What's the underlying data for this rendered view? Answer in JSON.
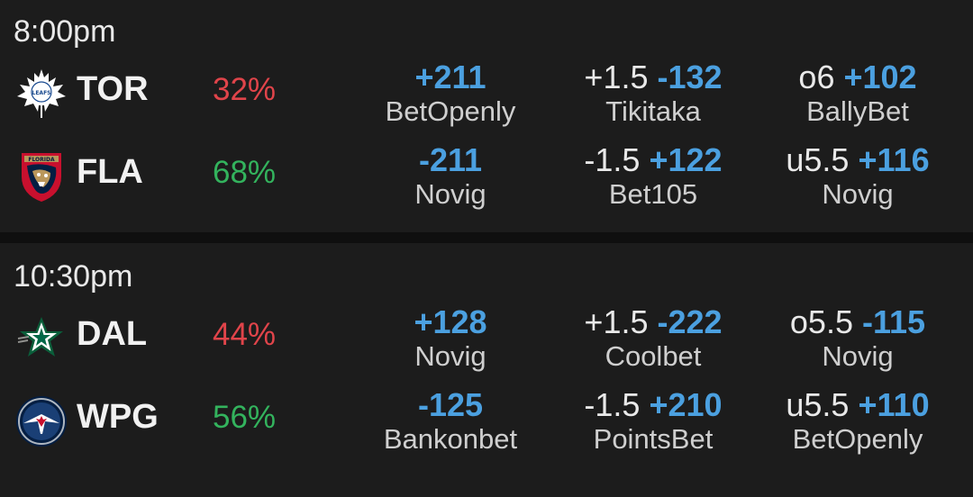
{
  "games": [
    {
      "time": "8:00pm",
      "teams": [
        {
          "abbr": "TOR",
          "logo": "maple-leafs-icon",
          "win_pct": "32%",
          "moneyline": {
            "price": "+211",
            "book": "BetOpenly"
          },
          "spread": {
            "line": "+1.5",
            "price": "-132",
            "book": "Tikitaka"
          },
          "total": {
            "line": "o6",
            "price": "+102",
            "book": "BallyBet"
          }
        },
        {
          "abbr": "FLA",
          "logo": "panthers-icon",
          "win_pct": "68%",
          "moneyline": {
            "price": "-211",
            "book": "Novig"
          },
          "spread": {
            "line": "-1.5",
            "price": "+122",
            "book": "Bet105"
          },
          "total": {
            "line": "u5.5",
            "price": "+116",
            "book": "Novig"
          }
        }
      ]
    },
    {
      "time": "10:30pm",
      "teams": [
        {
          "abbr": "DAL",
          "logo": "stars-icon",
          "win_pct": "44%",
          "moneyline": {
            "price": "+128",
            "book": "Novig"
          },
          "spread": {
            "line": "+1.5",
            "price": "-222",
            "book": "Coolbet"
          },
          "total": {
            "line": "o5.5",
            "price": "-115",
            "book": "Novig"
          }
        },
        {
          "abbr": "WPG",
          "logo": "jets-icon",
          "win_pct": "56%",
          "moneyline": {
            "price": "-125",
            "book": "Bankonbet"
          },
          "spread": {
            "line": "-1.5",
            "price": "+210",
            "book": "PointsBet"
          },
          "total": {
            "line": "u5.5",
            "price": "+110",
            "book": "BetOpenly"
          }
        }
      ]
    }
  ],
  "colors": {
    "background": "#0f0f0f",
    "panel": "#1c1c1c",
    "price_blue": "#4ba0e0",
    "pct_red": "#e0444a",
    "pct_green": "#33b35d"
  }
}
